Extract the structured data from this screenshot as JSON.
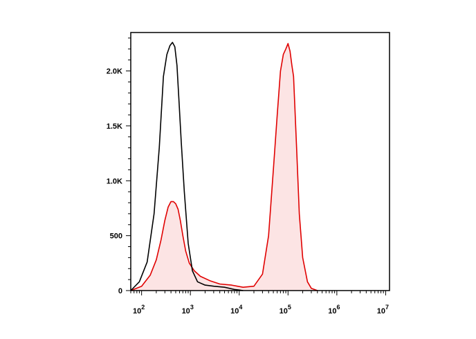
{
  "chart_data": {
    "type": "area",
    "title": "",
    "xlabel": "",
    "ylabel": "",
    "x_scale": "log",
    "xlim": [
      60,
      12000000
    ],
    "ylim": [
      0,
      2350
    ],
    "grid": false,
    "legend": "none",
    "y_ticks": [
      {
        "value": 0,
        "label": "0"
      },
      {
        "value": 500,
        "label": "500"
      },
      {
        "value": 1000,
        "label": "1.0K"
      },
      {
        "value": 1500,
        "label": "1.5K"
      },
      {
        "value": 2000,
        "label": "2.0K"
      }
    ],
    "x_ticks": [
      {
        "value": 100,
        "base": "10",
        "exp": "2"
      },
      {
        "value": 1000,
        "base": "10",
        "exp": "3"
      },
      {
        "value": 10000,
        "base": "10",
        "exp": "4"
      },
      {
        "value": 100000,
        "base": "10",
        "exp": "5"
      },
      {
        "value": 1000000,
        "base": "10",
        "exp": "6"
      },
      {
        "value": 10000000,
        "base": "10",
        "exp": "7"
      }
    ],
    "series": [
      {
        "color": "#000000",
        "fill": "none",
        "x": [
          60,
          90,
          130,
          180,
          230,
          280,
          330,
          380,
          430,
          480,
          530,
          580,
          650,
          750,
          900,
          1100,
          1400,
          2000,
          3000,
          5000,
          8000,
          10000,
          12000
        ],
        "values": [
          0,
          80,
          260,
          700,
          1300,
          1950,
          2150,
          2230,
          2260,
          2220,
          2050,
          1750,
          1350,
          900,
          430,
          180,
          80,
          50,
          40,
          30,
          10,
          5,
          0
        ]
      },
      {
        "color": "#e00000",
        "fill": "#fce4e4",
        "x": [
          60,
          100,
          150,
          200,
          250,
          300,
          350,
          400,
          450,
          500,
          560,
          620,
          700,
          800,
          950,
          1200,
          1600,
          2500,
          4000,
          7000,
          12000,
          20000,
          30000,
          40000,
          50000,
          60000,
          70000,
          80000,
          90000,
          100000,
          110000,
          120000,
          130000,
          150000,
          170000,
          200000,
          250000,
          300000,
          400000
        ],
        "values": [
          0,
          40,
          140,
          280,
          460,
          640,
          760,
          810,
          810,
          790,
          740,
          640,
          500,
          360,
          250,
          180,
          130,
          90,
          60,
          50,
          30,
          40,
          150,
          500,
          1100,
          1600,
          2000,
          2150,
          2200,
          2250,
          2180,
          2050,
          1950,
          1300,
          700,
          300,
          80,
          20,
          0
        ]
      }
    ]
  }
}
